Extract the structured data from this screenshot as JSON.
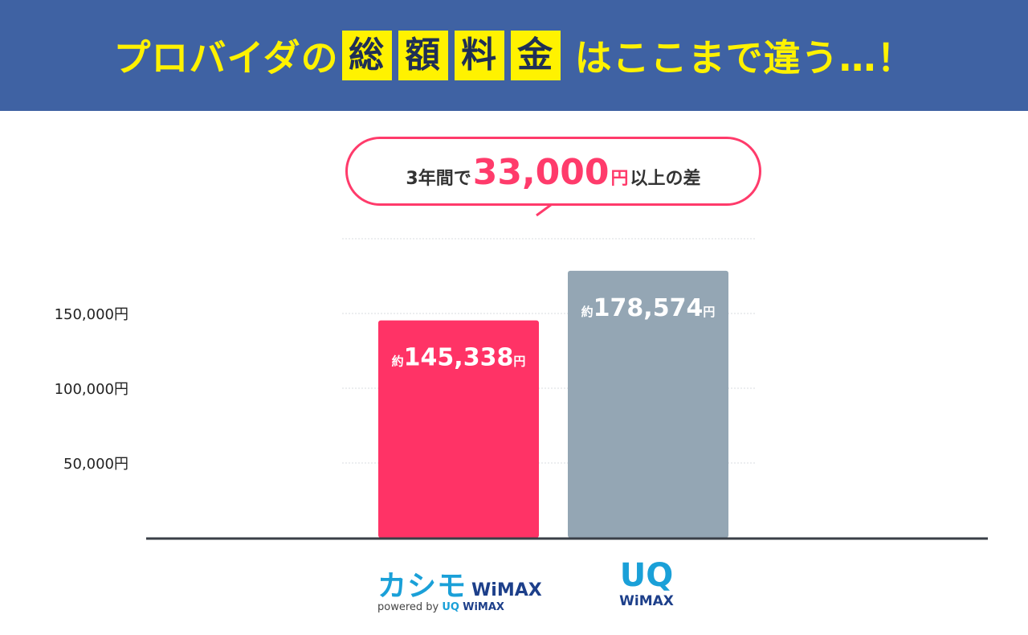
{
  "header": {
    "title_before": "プロバイダの",
    "title_boxes": [
      "総",
      "額",
      "料",
      "金"
    ],
    "title_after": "はここまで違う…！"
  },
  "callout": {
    "pre": "3年間で",
    "amount": "33,000",
    "unit": "円",
    "post": "以上の差"
  },
  "logos": {
    "kashimo": {
      "kana": "カシモ",
      "wimax": "WiMAX",
      "sub_prefix": "powered by",
      "sub_uq": "UQ",
      "sub_wimax": "WiMAX"
    },
    "uq": {
      "uq": "UQ",
      "wimax": "WiMAX"
    }
  },
  "chart_data": {
    "type": "bar",
    "categories": [
      "カシモWiMAX",
      "UQ WiMAX"
    ],
    "values": [
      145338,
      178574
    ],
    "data_labels": [
      {
        "prefix": "約",
        "value": "145,338",
        "unit": "円"
      },
      {
        "prefix": "約",
        "value": "178,574",
        "unit": "円"
      }
    ],
    "bar_colors": [
      "#ff3366",
      "#94a6b4"
    ],
    "y_ticks": [
      {
        "value": 50000,
        "label": "50,000円"
      },
      {
        "value": 100000,
        "label": "100,000円"
      },
      {
        "value": 150000,
        "label": "150,000円"
      }
    ],
    "ylim": [
      0,
      200000
    ],
    "grid": true
  }
}
